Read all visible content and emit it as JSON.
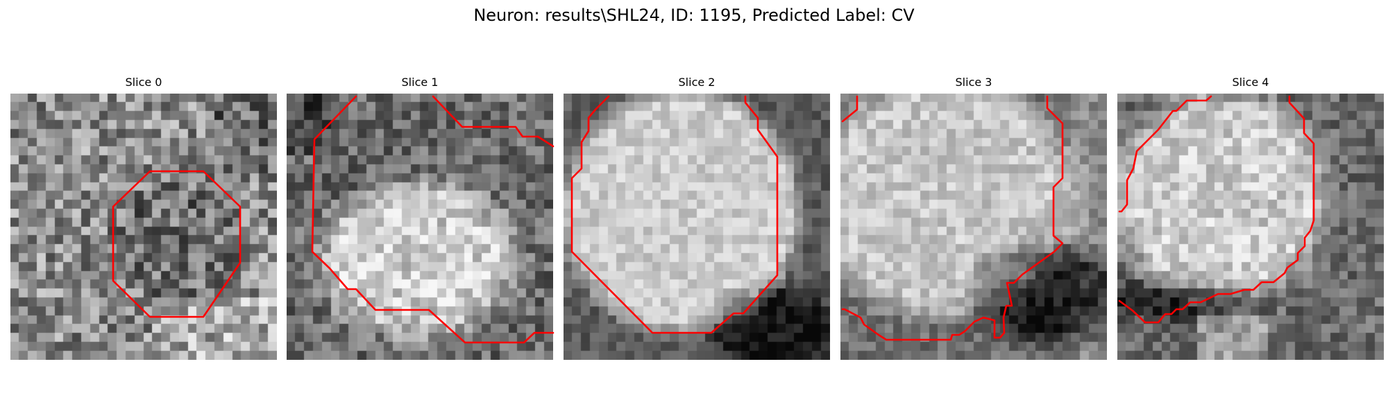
{
  "figure": {
    "title": "Neuron: results\\SHL24, ID: 1195, Predicted Label: CV",
    "contour_color": "#ff0000",
    "colormap": "gray",
    "slices": [
      {
        "title": "Slice 0"
      },
      {
        "title": "Slice 1"
      },
      {
        "title": "Slice 2"
      },
      {
        "title": "Slice 3"
      },
      {
        "title": "Slice 4"
      }
    ]
  }
}
